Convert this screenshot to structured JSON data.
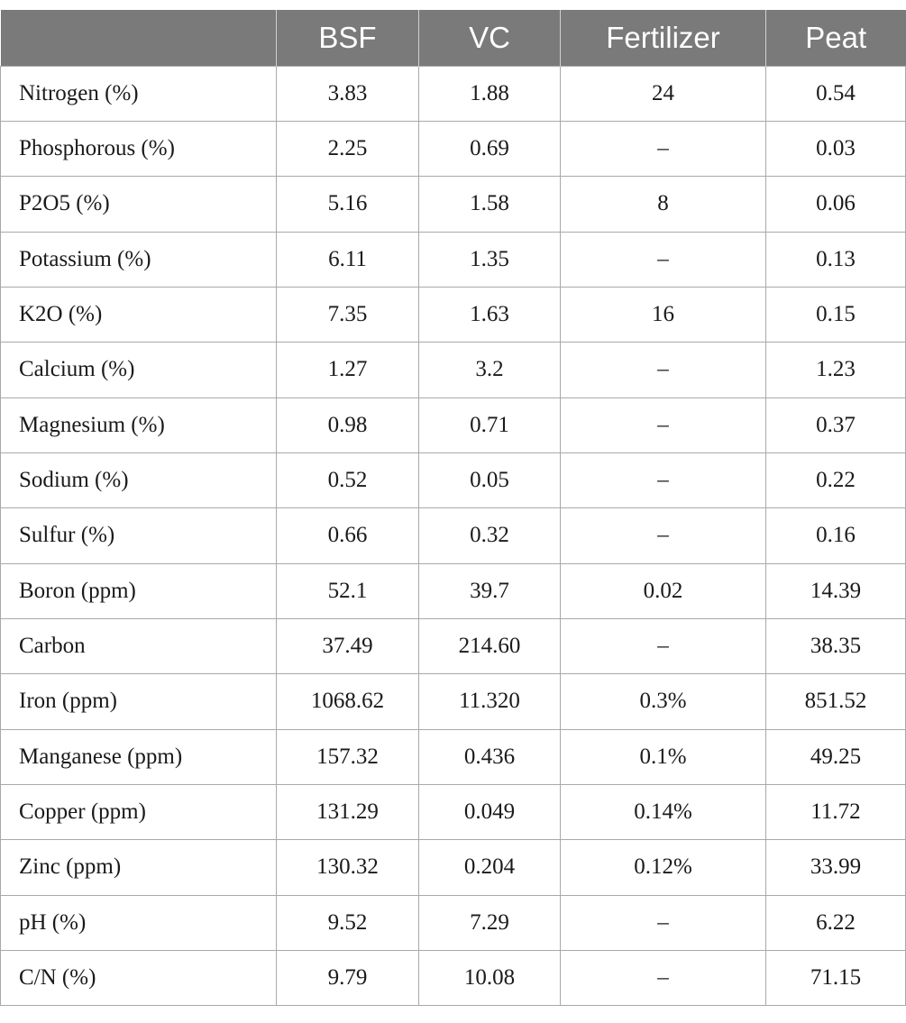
{
  "table": {
    "headers": [
      "",
      "BSF",
      "VC",
      "Fertilizer",
      "Peat"
    ],
    "rows": [
      [
        "Nitrogen (%)",
        "3.83",
        "1.88",
        "24",
        "0.54"
      ],
      [
        "Phosphorous (%)",
        "2.25",
        "0.69",
        "–",
        "0.03"
      ],
      [
        "P2O5 (%)",
        "5.16",
        "1.58",
        "8",
        "0.06"
      ],
      [
        "Potassium (%)",
        "6.11",
        "1.35",
        "–",
        "0.13"
      ],
      [
        "K2O (%)",
        "7.35",
        "1.63",
        "16",
        "0.15"
      ],
      [
        "Calcium (%)",
        "1.27",
        "3.2",
        "–",
        "1.23"
      ],
      [
        "Magnesium (%)",
        "0.98",
        "0.71",
        "–",
        "0.37"
      ],
      [
        "Sodium (%)",
        "0.52",
        "0.05",
        "–",
        "0.22"
      ],
      [
        "Sulfur (%)",
        "0.66",
        "0.32",
        "–",
        "0.16"
      ],
      [
        "Boron (ppm)",
        "52.1",
        "39.7",
        "0.02",
        "14.39"
      ],
      [
        "Carbon",
        "37.49",
        "214.60",
        "–",
        "38.35"
      ],
      [
        "Iron (ppm)",
        "1068.62",
        "11.320",
        "0.3%",
        "851.52"
      ],
      [
        "Manganese (ppm)",
        "157.32",
        "0.436",
        "0.1%",
        "49.25"
      ],
      [
        "Copper (ppm)",
        "131.29",
        "0.049",
        "0.14%",
        "11.72"
      ],
      [
        "Zinc (ppm)",
        "130.32",
        "0.204",
        "0.12%",
        "33.99"
      ],
      [
        "pH (%)",
        "9.52",
        "7.29",
        "–",
        "6.22"
      ],
      [
        "C/N (%)",
        "9.79",
        "10.08",
        "–",
        "71.15"
      ]
    ]
  },
  "colors": {
    "header_bg": "#7a7a7a",
    "header_text": "#ffffff",
    "grid": "#a9a9a9",
    "body_text": "#1a1a1a"
  }
}
